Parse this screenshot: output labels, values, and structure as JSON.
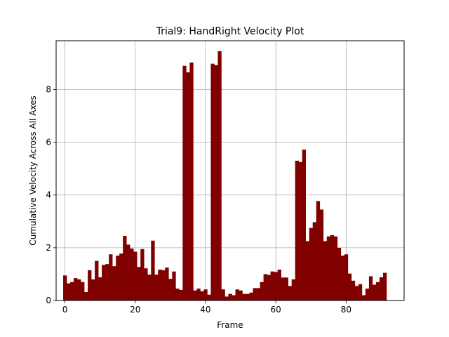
{
  "chart_data": {
    "type": "bar",
    "title": "Trial9: HandRight Velocity Plot",
    "xlabel": "Frame",
    "ylabel": "Cumulative Velocity Across All Axes",
    "xlim": [
      -2.5,
      96.5
    ],
    "ylim": [
      0,
      9.85
    ],
    "xticks": [
      0,
      20,
      40,
      60,
      80
    ],
    "yticks": [
      0,
      2,
      4,
      6,
      8
    ],
    "grid": true,
    "bar_color": "#800000",
    "x": [
      0,
      1,
      2,
      3,
      4,
      5,
      6,
      7,
      8,
      9,
      10,
      11,
      12,
      13,
      14,
      15,
      16,
      17,
      18,
      19,
      20,
      21,
      22,
      23,
      24,
      25,
      26,
      27,
      28,
      29,
      30,
      31,
      32,
      33,
      34,
      35,
      36,
      37,
      38,
      39,
      40,
      41,
      42,
      43,
      44,
      45,
      46,
      47,
      48,
      49,
      50,
      51,
      52,
      53,
      54,
      55,
      56,
      57,
      58,
      59,
      60,
      61,
      62,
      63,
      64,
      65,
      66,
      67,
      68,
      69,
      70,
      71,
      72,
      73,
      74,
      75,
      76,
      77,
      78,
      79,
      80,
      81,
      82,
      83,
      84,
      85,
      86,
      87,
      88,
      89,
      90,
      91
    ],
    "values": [
      0.95,
      0.65,
      0.7,
      0.85,
      0.8,
      0.7,
      0.32,
      1.15,
      0.8,
      1.5,
      0.88,
      1.35,
      1.38,
      1.75,
      1.3,
      1.7,
      1.78,
      2.45,
      2.12,
      1.97,
      1.85,
      1.27,
      1.95,
      1.22,
      0.98,
      2.27,
      0.98,
      1.17,
      1.15,
      1.25,
      0.82,
      1.1,
      0.45,
      0.4,
      8.9,
      8.65,
      9.02,
      0.38,
      0.45,
      0.35,
      0.42,
      0.22,
      8.98,
      8.92,
      9.45,
      0.42,
      0.15,
      0.25,
      0.2,
      0.42,
      0.38,
      0.25,
      0.25,
      0.3,
      0.47,
      0.47,
      0.7,
      1.0,
      0.97,
      1.1,
      1.08,
      1.17,
      0.87,
      0.87,
      0.55,
      0.8,
      5.3,
      5.25,
      5.72,
      2.25,
      2.75,
      2.97,
      3.77,
      3.45,
      2.25,
      2.43,
      2.48,
      2.43,
      2.0,
      1.7,
      1.75,
      1.02,
      0.75,
      0.55,
      0.62,
      0.2,
      0.45,
      0.92,
      0.6,
      0.7,
      0.88,
      1.05
    ]
  }
}
